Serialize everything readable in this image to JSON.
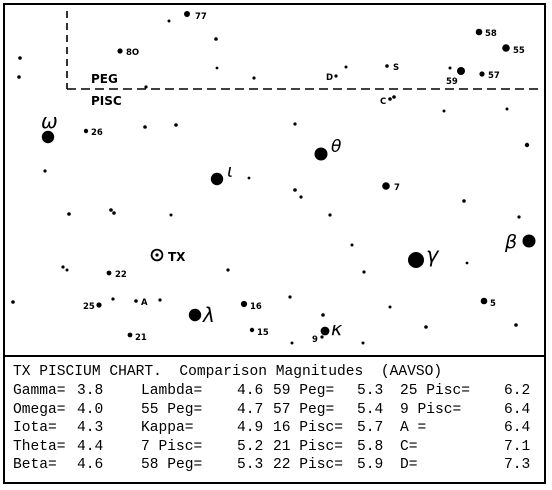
{
  "chart": {
    "boundary_upper_label": "PEG",
    "boundary_lower_label": "PISC",
    "target_label": "TX",
    "star_labels": {
      "s77": "77",
      "s80": "8O",
      "s58": "58",
      "s55": "55",
      "s57": "57",
      "s59": "59",
      "sD": "D",
      "sS": "S",
      "sC": "C",
      "s26": "26",
      "s7": "7",
      "s22": "22",
      "s25": "25",
      "sA": "A",
      "s16": "16",
      "s21": "21",
      "s15": "15",
      "s9": "9",
      "s5": "5"
    },
    "greek_labels": {
      "omega": "ω",
      "theta": "θ",
      "iota": "ι",
      "beta": "β",
      "gamma": "γ",
      "lambda": "λ",
      "kappa": "κ"
    }
  },
  "table": {
    "title": "TX PISCIUM CHART.  Comparison Magnitudes  (AAVSO)",
    "columns": [
      [
        {
          "name": "Gamma=",
          "value": "3.8"
        },
        {
          "name": "Omega=",
          "value": "4.0"
        },
        {
          "name": "Iota=",
          "value": "4.3"
        },
        {
          "name": "Theta=",
          "value": "4.4"
        },
        {
          "name": "Beta=",
          "value": "4.6"
        }
      ],
      [
        {
          "name": "Lambda=",
          "value": "4.6"
        },
        {
          "name": "55 Peg=",
          "value": "4.7"
        },
        {
          "name": "Kappa=",
          "value": "4.9"
        },
        {
          "name": "7 Pisc=",
          "value": "5.2"
        },
        {
          "name": "58 Peg=",
          "value": "5.3"
        }
      ],
      [
        {
          "name": "59 Peg=",
          "value": "5.3"
        },
        {
          "name": "57 Peg=",
          "value": "5.4"
        },
        {
          "name": "16 Pisc=",
          "value": "5.7"
        },
        {
          "name": "21 Pisc=",
          "value": "5.8"
        },
        {
          "name": "22 Pisc=",
          "value": "5.9"
        }
      ],
      [
        {
          "name": "25 Pisc=",
          "value": "6.2"
        },
        {
          "name": "9 Pisc=",
          "value": "6.4"
        },
        {
          "name": "A =",
          "value": "6.4"
        },
        {
          "name": "C=",
          "value": "7.1"
        },
        {
          "name": "D=",
          "value": "7.3"
        }
      ]
    ]
  }
}
